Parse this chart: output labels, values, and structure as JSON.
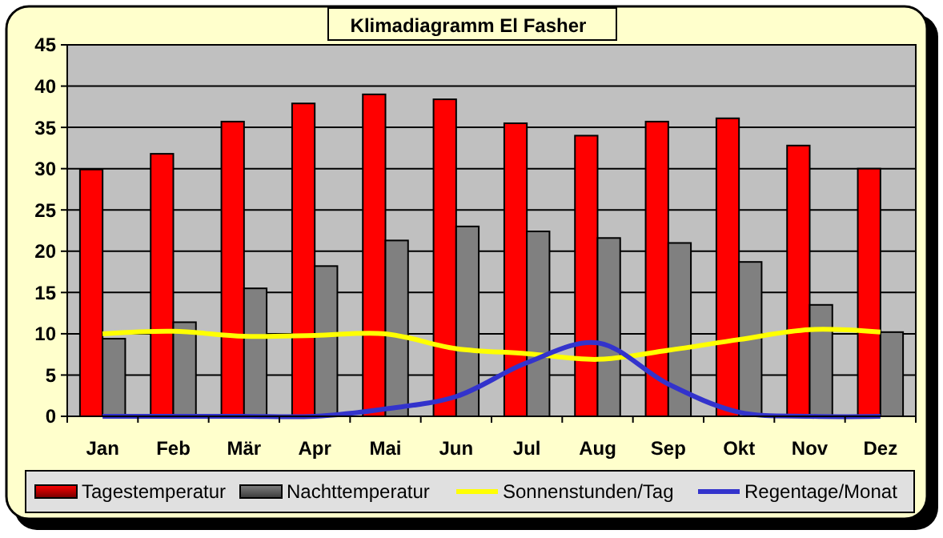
{
  "chart_data": {
    "type": "bar",
    "title": "Klimadiagramm El Fasher",
    "categories": [
      "Jan",
      "Feb",
      "Mär",
      "Apr",
      "Mai",
      "Jun",
      "Jul",
      "Aug",
      "Sep",
      "Okt",
      "Nov",
      "Dez"
    ],
    "series": [
      {
        "name": "Tagestemperatur",
        "color": "#ff0000",
        "values": [
          29.9,
          31.8,
          35.7,
          37.9,
          39.0,
          38.4,
          35.5,
          34.0,
          35.7,
          36.1,
          32.8,
          30.0
        ]
      },
      {
        "name": "Nachttemperatur",
        "color": "#808080",
        "values": [
          9.4,
          11.4,
          15.5,
          18.2,
          21.3,
          23.0,
          22.4,
          21.6,
          21.0,
          18.7,
          13.5,
          10.2
        ]
      },
      {
        "name": "Sonnenstunden/Tag",
        "type": "line",
        "color": "#ffff00",
        "values": [
          10.0,
          10.3,
          9.7,
          9.8,
          10.0,
          8.2,
          7.6,
          6.9,
          8.0,
          9.3,
          10.5,
          10.2
        ]
      },
      {
        "name": "Regentage/Monat",
        "type": "line",
        "color": "#3333cc",
        "values": [
          0,
          0,
          0,
          0,
          0.9,
          2.4,
          6.5,
          8.9,
          3.9,
          0.5,
          0,
          0
        ]
      }
    ],
    "ylim": [
      0,
      45
    ],
    "yticks": [
      0,
      5,
      10,
      15,
      20,
      25,
      30,
      35,
      40,
      45
    ],
    "grid": "y",
    "legend": "bottom"
  }
}
